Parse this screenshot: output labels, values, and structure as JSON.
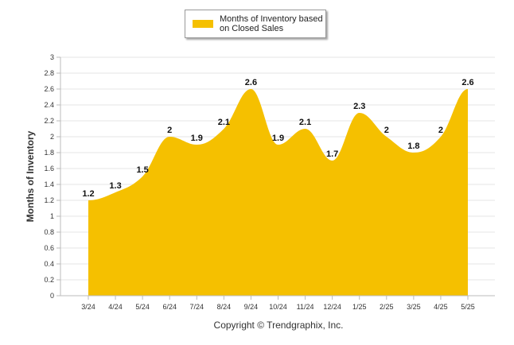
{
  "colors": {
    "fill": "#f5c000",
    "grid": "#e6e6e6",
    "axis": "#bbbbbb"
  },
  "legend": {
    "label": "Months of Inventory based on Closed Sales"
  },
  "footer": {
    "text": "Copyright © Trendgraphix, Inc."
  },
  "chart_data": {
    "type": "area",
    "categories": [
      "3/24",
      "4/24",
      "5/24",
      "6/24",
      "7/24",
      "8/24",
      "9/24",
      "10/24",
      "11/24",
      "12/24",
      "1/25",
      "2/25",
      "3/25",
      "4/25",
      "5/25"
    ],
    "series": [
      {
        "name": "Months of Inventory based on Closed Sales",
        "values": [
          1.2,
          1.3,
          1.5,
          2,
          1.9,
          2.1,
          2.6,
          1.9,
          2.1,
          1.7,
          2.3,
          2,
          1.8,
          2,
          2.6
        ]
      }
    ],
    "data_labels": [
      "1.2",
      "1.3",
      "1.5",
      "2",
      "1.9",
      "2.1",
      "2.6",
      "1.9",
      "2.1",
      "1.7",
      "2.3",
      "2",
      "1.8",
      "2",
      "2.6"
    ],
    "ylabel": "Months of Inventory",
    "xlabel": "",
    "ylim": [
      0,
      3
    ],
    "yticks": [
      "0",
      "0.2",
      "0.4",
      "0.6",
      "0.8",
      "1",
      "1.2",
      "1.4",
      "1.6",
      "1.8",
      "2",
      "2.2",
      "2.4",
      "2.6",
      "2.8",
      "3"
    ],
    "grid": true,
    "legend_position": "top-center"
  }
}
